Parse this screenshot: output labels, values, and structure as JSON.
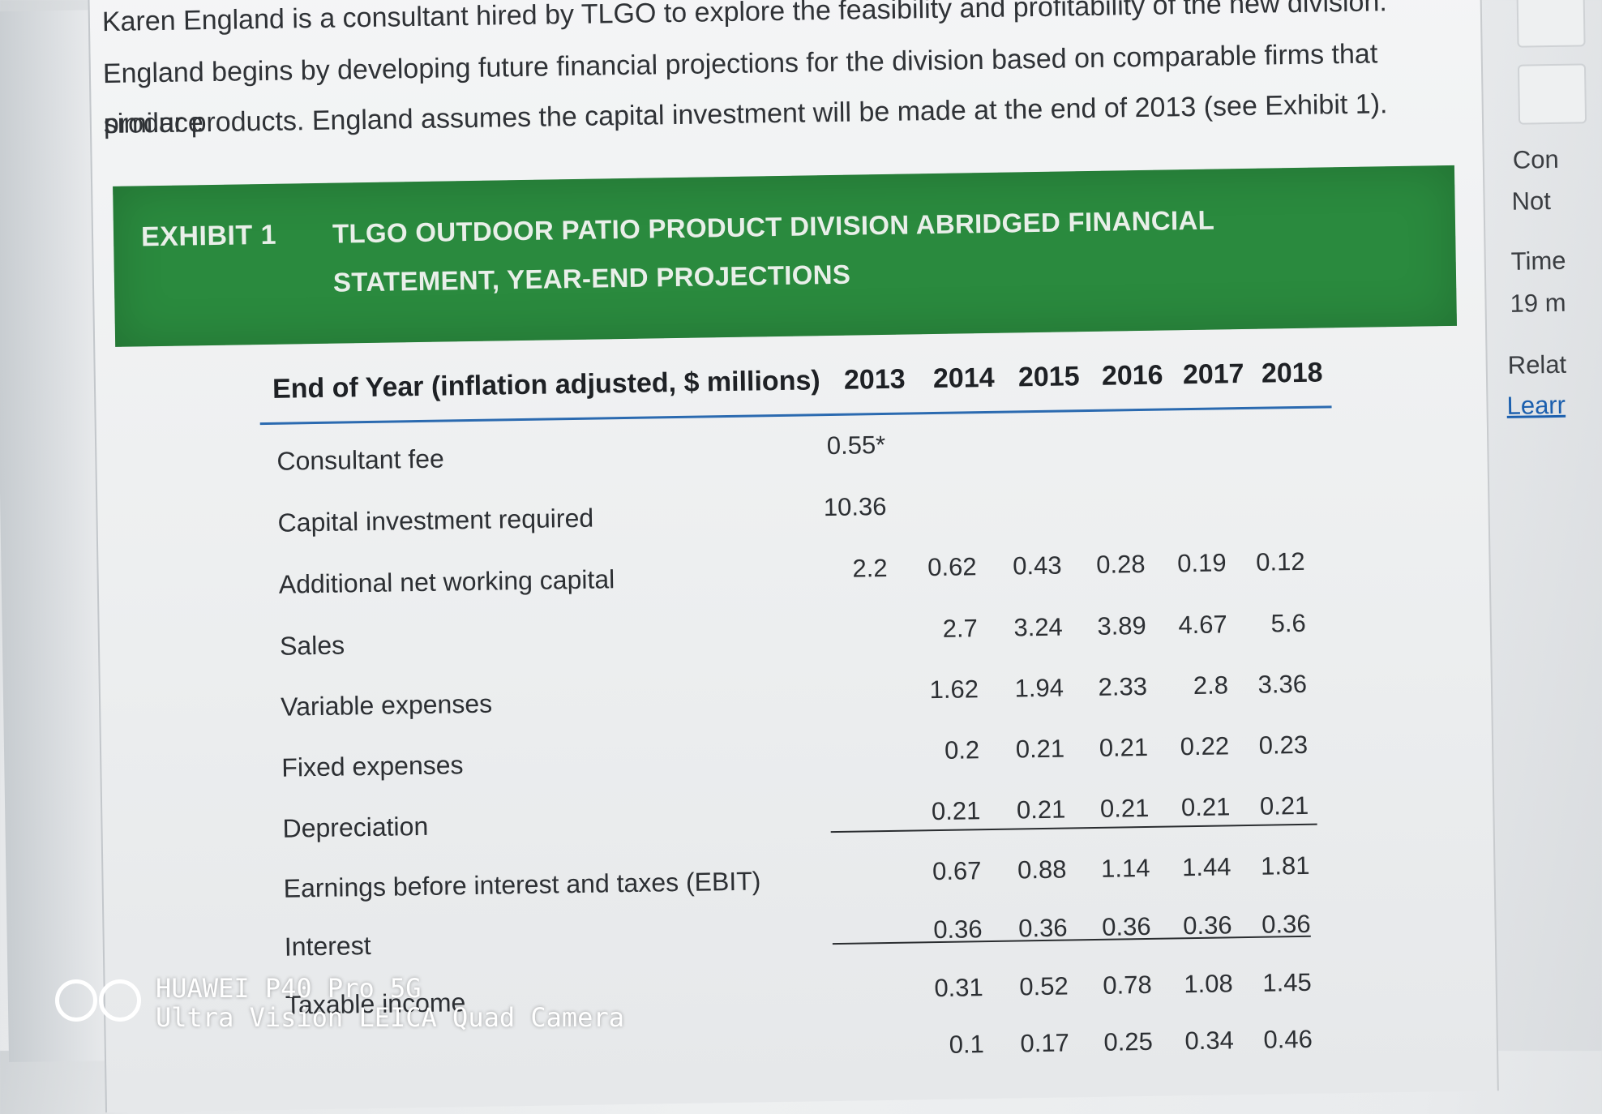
{
  "intro_lines": [
    "Karen England is a consultant hired by TLGO to explore the feasibility and profitability of the new division.",
    "England begins by developing future financial projections for the division based on comparable firms that produce",
    "similar products. England assumes the capital investment will be made at the end of 2013 (see Exhibit 1)."
  ],
  "exhibit": {
    "label": "EXHIBIT 1",
    "title_line1": "TLGO OUTDOOR PATIO PRODUCT DIVISION ABRIDGED FINANCIAL",
    "title_line2": "STATEMENT, YEAR-END PROJECTIONS",
    "banner_color": "#2a8a3e"
  },
  "table": {
    "header_label": "End of Year (inflation adjusted, $ millions)",
    "years": [
      "2013",
      "2014",
      "2015",
      "2016",
      "2017",
      "2018"
    ],
    "rows": [
      {
        "label": "Consultant fee",
        "values": [
          "0.55*",
          "",
          "",
          "",
          "",
          ""
        ]
      },
      {
        "label": "Capital investment required",
        "values": [
          "10.36",
          "",
          "",
          "",
          "",
          ""
        ]
      },
      {
        "label": "Additional net working capital",
        "values": [
          "2.2",
          "0.62",
          "0.43",
          "0.28",
          "0.19",
          "0.12"
        ]
      },
      {
        "label": "Sales",
        "values": [
          "",
          "2.7",
          "3.24",
          "3.89",
          "4.67",
          "5.6"
        ]
      },
      {
        "label": "Variable expenses",
        "values": [
          "",
          "1.62",
          "1.94",
          "2.33",
          "2.8",
          "3.36"
        ]
      },
      {
        "label": "Fixed expenses",
        "values": [
          "",
          "0.2",
          "0.21",
          "0.21",
          "0.22",
          "0.23"
        ]
      },
      {
        "label": "Depreciation",
        "values": [
          "",
          "0.21",
          "0.21",
          "0.21",
          "0.21",
          "0.21"
        ]
      },
      {
        "label": "Earnings before interest and taxes (EBIT)",
        "values": [
          "",
          "0.67",
          "0.88",
          "1.14",
          "1.44",
          "1.81"
        ]
      },
      {
        "label": "Interest",
        "values": [
          "",
          "0.36",
          "0.36",
          "0.36",
          "0.36",
          "0.36"
        ]
      },
      {
        "label": "Taxable income",
        "values": [
          "",
          "0.31",
          "0.52",
          "0.78",
          "1.08",
          "1.45"
        ]
      },
      {
        "label": "",
        "values": [
          "",
          "0.1",
          "0.17",
          "0.25",
          "0.34",
          "0.46"
        ]
      }
    ]
  },
  "sidebar": {
    "items": [
      "Con",
      "Not",
      "Time",
      "19 m",
      "Relat"
    ],
    "link": "Learr"
  },
  "watermark": {
    "line1": "HUAWEI P40 Pro 5G",
    "line2": "Ultra Vision LEICA Quad Camera"
  }
}
